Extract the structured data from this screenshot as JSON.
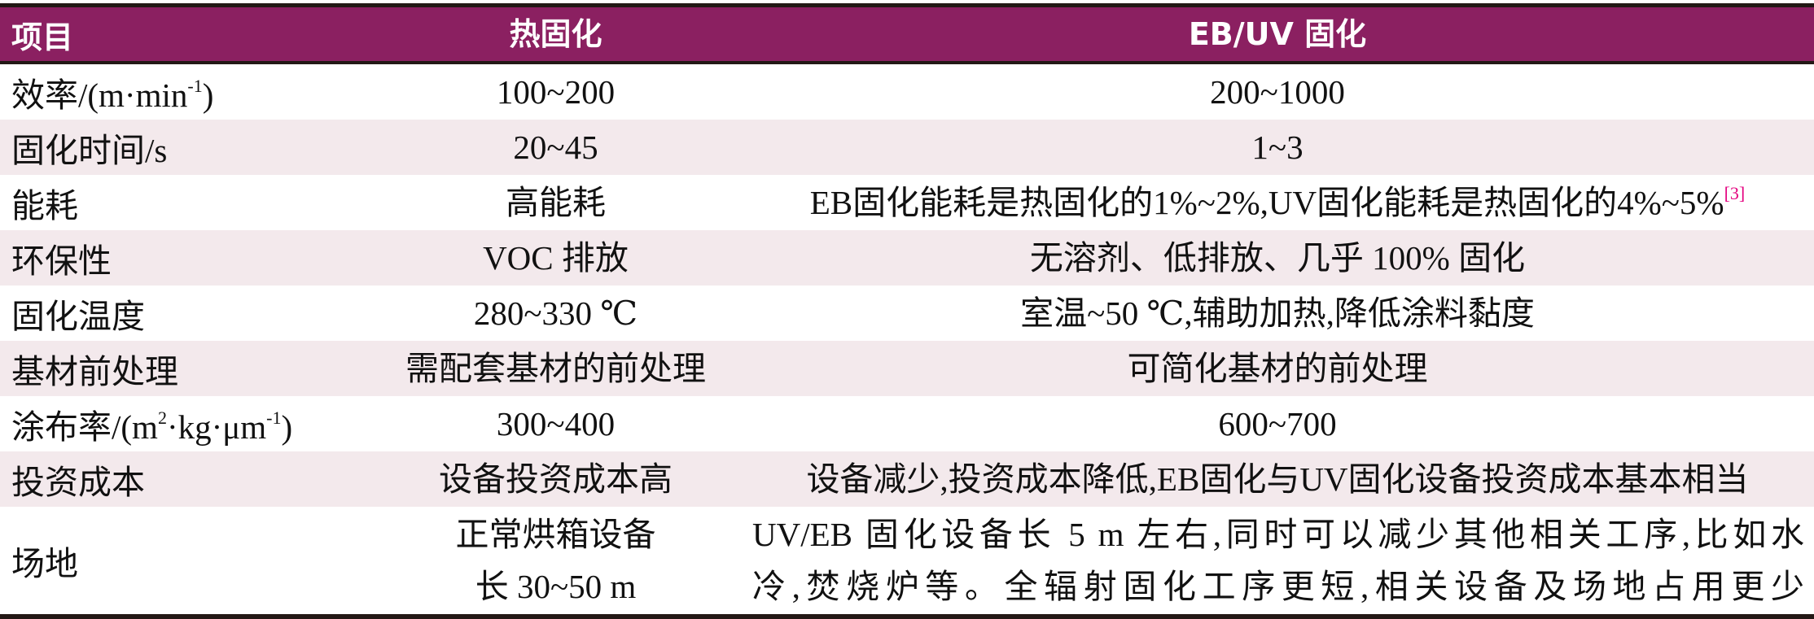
{
  "header": {
    "col1": "项目",
    "col2": "热固化",
    "col3": "EB/UV 固化"
  },
  "accent_color": "#8B2061",
  "stripe_color": "#F3E9EC",
  "rows": [
    {
      "item": "效率/(m·min",
      "item_sup": "-1",
      "item_tail": ")",
      "thermal": "100~200",
      "ebuv": "200~1000"
    },
    {
      "item": "固化时间/s",
      "thermal": "20~45",
      "ebuv": "1~3"
    },
    {
      "item": "能耗",
      "thermal": "高能耗",
      "ebuv": "EB固化能耗是热固化的1%~2%,UV固化能耗是热固化的4%~5%",
      "ebuv_ref": "[3]"
    },
    {
      "item": "环保性",
      "thermal": "VOC 排放",
      "ebuv": "无溶剂、低排放、几乎 100% 固化"
    },
    {
      "item": "固化温度",
      "thermal": "280~330 ℃",
      "ebuv": "室温~50 ℃,辅助加热,降低涂料黏度"
    },
    {
      "item": "基材前处理",
      "thermal": "需配套基材的前处理",
      "ebuv": "可简化基材的前处理"
    },
    {
      "item": "涂布率/(m",
      "item_sup": "2",
      "item_mid": "·kg·μm",
      "item_sup2": "-1",
      "item_tail": ")",
      "thermal": "300~400",
      "ebuv": "600~700"
    },
    {
      "item": "投资成本",
      "thermal": "设备投资成本高",
      "ebuv": "设备减少,投资成本降低,EB固化与UV固化设备投资成本基本相当"
    },
    {
      "item": "场地",
      "thermal_line1": "正常烘箱设备",
      "thermal_line2": "长 30~50 m",
      "ebuv_line1": "UV/EB 固化设备长 5 m 左右,同时可以减少其他相关工序,比如水",
      "ebuv_line2": "冷,焚烧炉等。全辐射固化工序更短,相关设备及场地占用更少"
    }
  ]
}
